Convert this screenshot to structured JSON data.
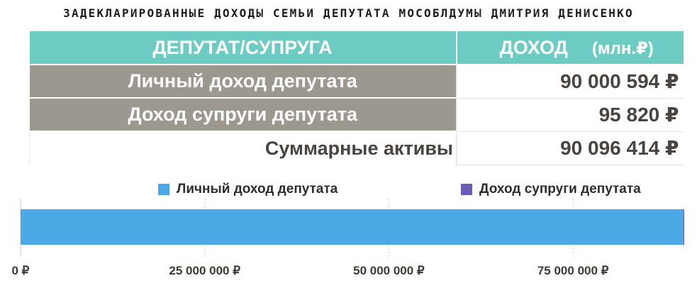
{
  "title": "ЗАДЕКЛАРИРОВАННЫЕ ДОХОДЫ СЕМЬИ ДЕПУТАТА МОСОБЛДУМЫ ДМИТРИЯ ДЕНИСЕНКО",
  "table": {
    "header": {
      "col1": "ДЕПУТАТ/СУПРУГА",
      "col2": "ДОХОД",
      "col2_unit": "(млн.₽)"
    },
    "rows": [
      {
        "label": "Личный доход депутата",
        "value": "90 000 594 ₽"
      },
      {
        "label": "Доход супруги депутата",
        "value": "95 820 ₽"
      }
    ],
    "total": {
      "label": "Суммарные активы",
      "value": "90 096 414 ₽"
    }
  },
  "colors": {
    "header_bg": "#6ccbc3",
    "row_label_bg": "#9c978f",
    "series_deputy": "#4da8e6",
    "series_spouse": "#6a5cb6"
  },
  "chart_data": {
    "type": "bar",
    "orientation": "horizontal",
    "stacked": true,
    "categories": [
      ""
    ],
    "series": [
      {
        "name": "Личный доход депутата",
        "values": [
          90000594
        ],
        "color": "#4da8e6"
      },
      {
        "name": "Доход супруги депутата",
        "values": [
          95820
        ],
        "color": "#6a5cb6"
      }
    ],
    "xlim": [
      0,
      90096414
    ],
    "xticks": [
      0,
      25000000,
      50000000,
      75000000
    ],
    "xtick_labels": [
      "0 ₽",
      "25 000 000 ₽",
      "50 000 000 ₽",
      "75 000 000 ₽"
    ],
    "grid": true,
    "legend": "top"
  }
}
